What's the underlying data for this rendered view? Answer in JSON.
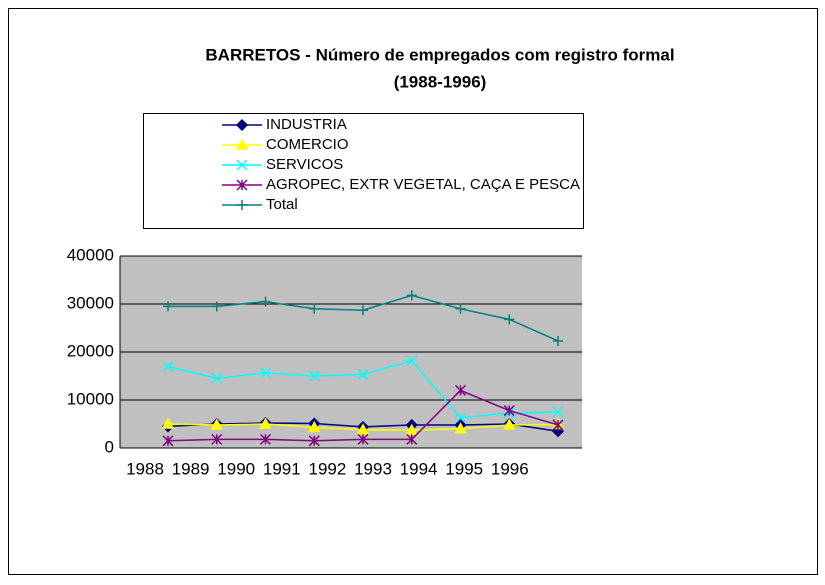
{
  "chart_data": {
    "type": "line",
    "title": "BARRETOS - Número de empregados com registro formal",
    "subtitle": "(1988-1996)",
    "categories": [
      "1988",
      "1989",
      "1990",
      "1991",
      "1992",
      "1993",
      "1994",
      "1995",
      "1996"
    ],
    "series": [
      {
        "name": "INDUSTRIA",
        "color": "#000080",
        "marker": "diamond",
        "values": [
          4500,
          5000,
          5200,
          5100,
          4400,
          4800,
          4800,
          5000,
          3500
        ]
      },
      {
        "name": "COMERCIO",
        "color": "#ffff00",
        "marker": "triangle",
        "values": [
          5000,
          4800,
          5000,
          4300,
          3800,
          3700,
          4000,
          4800,
          4900
        ]
      },
      {
        "name": "SERVICOS",
        "color": "#00ffff",
        "marker": "x",
        "values": [
          17000,
          14500,
          15700,
          15000,
          15300,
          18200,
          6300,
          7300,
          7500
        ]
      },
      {
        "name": "AGROPEC, EXTR VEGETAL, CAÇA E PESCA",
        "color": "#800080",
        "marker": "asterisk",
        "values": [
          1500,
          1800,
          1800,
          1500,
          1800,
          1800,
          12000,
          7800,
          4800
        ]
      },
      {
        "name": "Total",
        "color": "#008080",
        "marker": "plus",
        "values": [
          29500,
          29500,
          30500,
          29000,
          28700,
          31800,
          29000,
          26800,
          22300
        ]
      }
    ],
    "ylim": [
      0,
      40000
    ],
    "yticks": [
      0,
      10000,
      20000,
      30000,
      40000
    ],
    "grid": true,
    "legend": "top"
  }
}
